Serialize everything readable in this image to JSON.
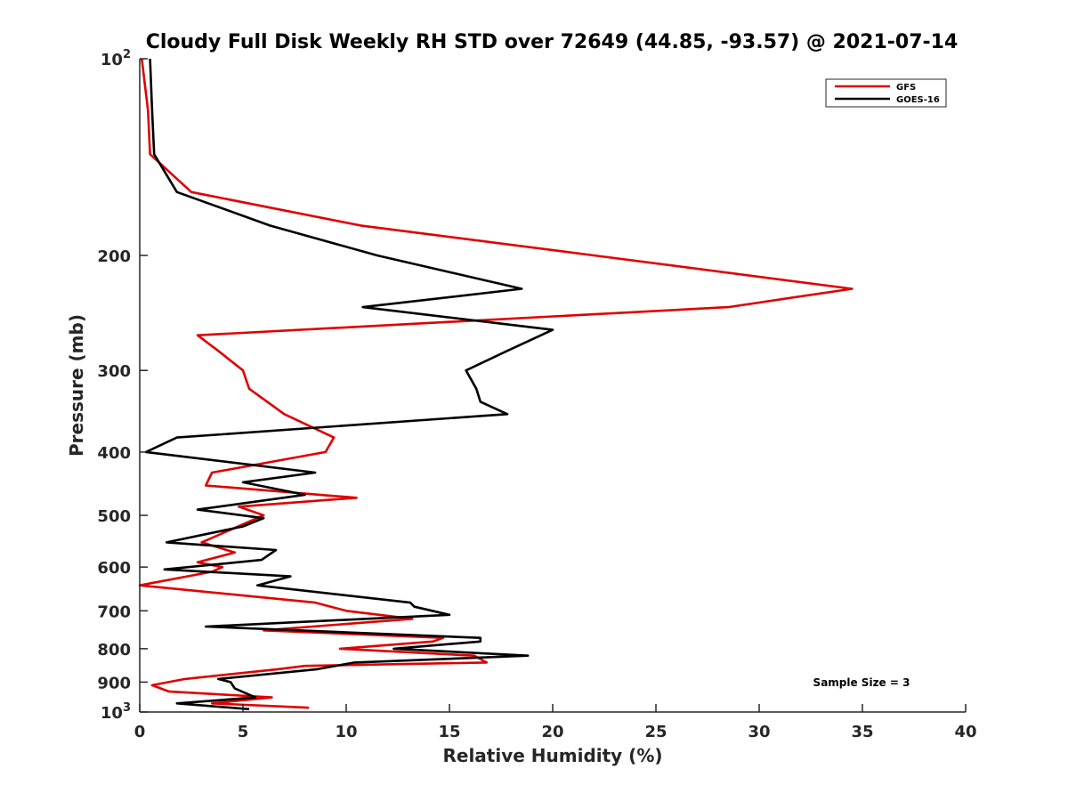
{
  "chart_data": {
    "type": "line",
    "title": "Cloudy Full Disk Weekly RH STD over 72649 (44.85, -93.57) @ 2021-07-14",
    "xlabel": "Relative Humidity (%)",
    "ylabel": "Pressure (mb)",
    "xlim": [
      0,
      40
    ],
    "ylim": [
      100,
      1000
    ],
    "y_scale": "log",
    "y_reversed": true,
    "grid": false,
    "legend_position": "top-right",
    "x_ticks": [
      "0",
      "5",
      "10",
      "15",
      "20",
      "25",
      "30",
      "35",
      "40"
    ],
    "y_ticks": [
      {
        "value": 100,
        "base": "10",
        "exp": "2"
      },
      {
        "value": 200,
        "label": "200"
      },
      {
        "value": 300,
        "label": "300"
      },
      {
        "value": 400,
        "label": "400"
      },
      {
        "value": 500,
        "label": "500"
      },
      {
        "value": 600,
        "label": "600"
      },
      {
        "value": 700,
        "label": "700"
      },
      {
        "value": 800,
        "label": "800"
      },
      {
        "value": 900,
        "label": "900"
      },
      {
        "value": 1000,
        "base": "10",
        "exp": "3"
      }
    ],
    "annotation": "Sample Size = 3",
    "series": [
      {
        "name": "GFS",
        "color": "#e00000",
        "points": [
          [
            0.1,
            100
          ],
          [
            0.4,
            120
          ],
          [
            0.5,
            140
          ],
          [
            2.5,
            160
          ],
          [
            10.7,
            180
          ],
          [
            22.0,
            200
          ],
          [
            34.5,
            225
          ],
          [
            28.5,
            240
          ],
          [
            2.8,
            265
          ],
          [
            3.8,
            280
          ],
          [
            5.0,
            300
          ],
          [
            5.3,
            320
          ],
          [
            7.0,
            350
          ],
          [
            9.4,
            380
          ],
          [
            9.0,
            400
          ],
          [
            3.5,
            430
          ],
          [
            3.2,
            450
          ],
          [
            10.5,
            470
          ],
          [
            4.8,
            485
          ],
          [
            6.0,
            500
          ],
          [
            3.0,
            550
          ],
          [
            4.6,
            570
          ],
          [
            2.8,
            590
          ],
          [
            4.0,
            600
          ],
          [
            3.5,
            610
          ],
          [
            0.0,
            640
          ],
          [
            8.5,
            680
          ],
          [
            10.0,
            700
          ],
          [
            13.2,
            720
          ],
          [
            6.0,
            750
          ],
          [
            14.7,
            770
          ],
          [
            14.2,
            780
          ],
          [
            9.7,
            800
          ],
          [
            16.2,
            820
          ],
          [
            16.8,
            840
          ],
          [
            8.0,
            850
          ],
          [
            6.7,
            860
          ],
          [
            2.2,
            890
          ],
          [
            0.6,
            910
          ],
          [
            1.4,
            930
          ],
          [
            6.4,
            950
          ],
          [
            3.5,
            970
          ],
          [
            8.2,
            985
          ]
        ]
      },
      {
        "name": "GOES-16",
        "color": "#000000",
        "points": [
          [
            0.5,
            100
          ],
          [
            0.6,
            120
          ],
          [
            0.7,
            140
          ],
          [
            1.8,
            160
          ],
          [
            6.3,
            180
          ],
          [
            11.5,
            200
          ],
          [
            18.5,
            225
          ],
          [
            10.8,
            240
          ],
          [
            20.0,
            260
          ],
          [
            17.8,
            280
          ],
          [
            15.8,
            300
          ],
          [
            16.3,
            320
          ],
          [
            16.5,
            335
          ],
          [
            17.8,
            350
          ],
          [
            1.8,
            380
          ],
          [
            0.3,
            400
          ],
          [
            8.5,
            430
          ],
          [
            5.0,
            445
          ],
          [
            8.0,
            465
          ],
          [
            2.8,
            490
          ],
          [
            6.0,
            505
          ],
          [
            5.0,
            520
          ],
          [
            1.3,
            550
          ],
          [
            6.6,
            565
          ],
          [
            5.9,
            585
          ],
          [
            1.2,
            605
          ],
          [
            7.3,
            620
          ],
          [
            5.7,
            640
          ],
          [
            13.1,
            680
          ],
          [
            13.3,
            690
          ],
          [
            15.0,
            710
          ],
          [
            3.2,
            740
          ],
          [
            16.5,
            770
          ],
          [
            16.5,
            780
          ],
          [
            12.3,
            800
          ],
          [
            18.8,
            820
          ],
          [
            10.4,
            840
          ],
          [
            8.6,
            860
          ],
          [
            3.8,
            890
          ],
          [
            4.4,
            900
          ],
          [
            4.6,
            920
          ],
          [
            5.6,
            950
          ],
          [
            1.8,
            970
          ],
          [
            5.3,
            990
          ]
        ]
      }
    ]
  }
}
